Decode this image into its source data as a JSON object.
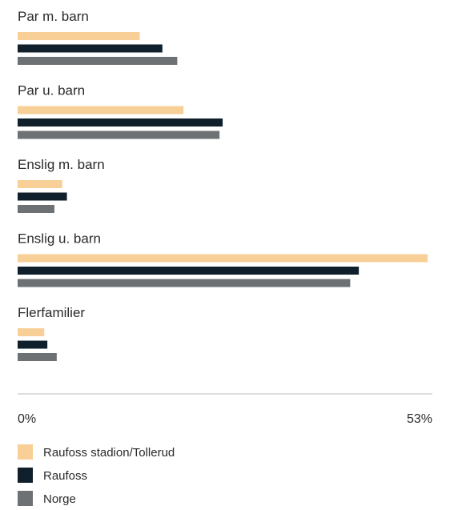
{
  "chart_data": {
    "type": "bar",
    "orientation": "horizontal",
    "categories": [
      "Par m. barn",
      "Par u. barn",
      "Enslig m. barn",
      "Enslig u. barn",
      "Flerfamilier"
    ],
    "series": [
      {
        "name": "Raufoss stadion/Tollerud",
        "color": "#f7cf97",
        "values": [
          15.6,
          21.2,
          5.7,
          52.4,
          3.4
        ]
      },
      {
        "name": "Raufoss",
        "color": "#0f1f2b",
        "values": [
          18.5,
          26.2,
          6.3,
          43.6,
          3.8
        ]
      },
      {
        "name": "Norge",
        "color": "#6d7173",
        "values": [
          20.4,
          25.8,
          4.7,
          42.5,
          5.0
        ]
      }
    ],
    "xlim": [
      0,
      53
    ],
    "tick_labels": [
      "0%",
      "53%"
    ],
    "legend_position": "bottom-left",
    "grid": false
  }
}
